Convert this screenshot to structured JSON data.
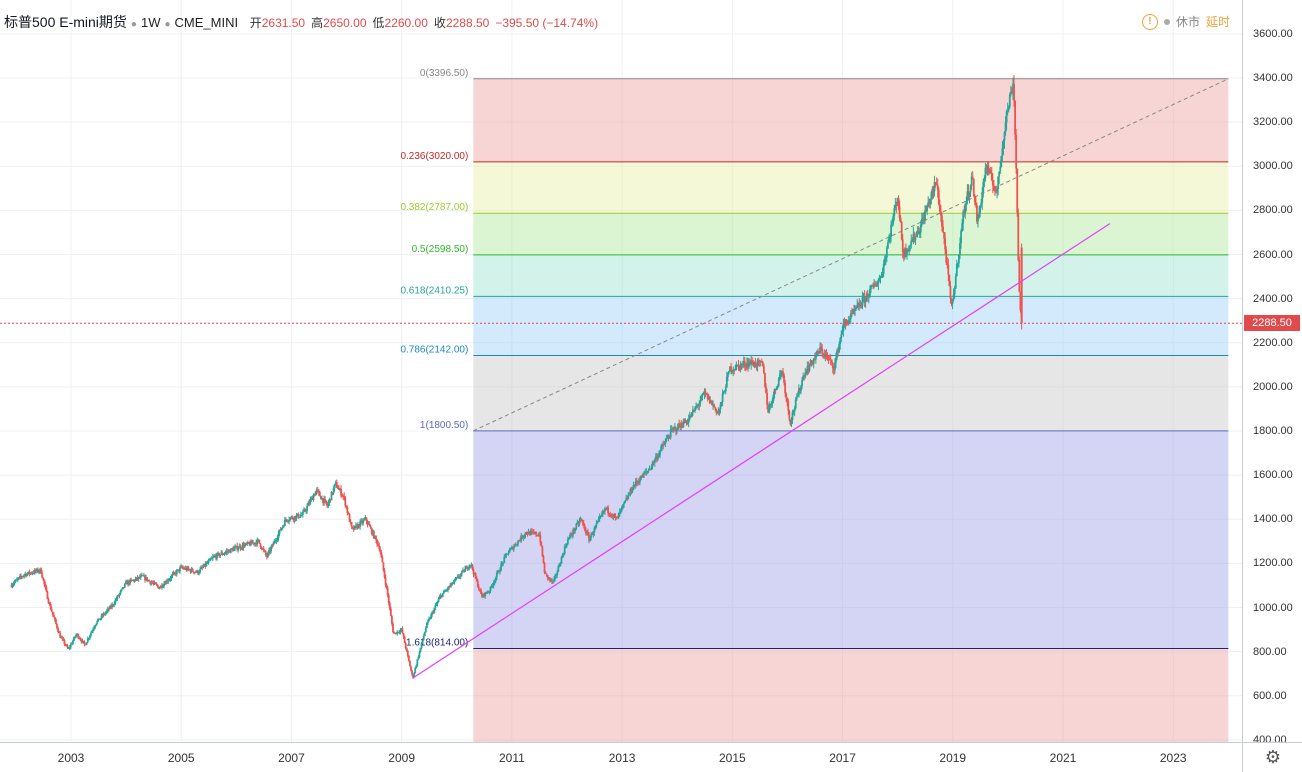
{
  "legend": {
    "symbol": "标普500 E-mini期货",
    "interval": "1W",
    "exchange": "CME_MINI",
    "open_label": "开",
    "open": "2631.50",
    "high_label": "高",
    "high": "2650.00",
    "low_label": "低",
    "low": "2260.00",
    "close_label": "收",
    "close": "2288.50",
    "change": "−395.50 (−14.74%)"
  },
  "status": {
    "warn": "!",
    "market": "休市",
    "delay": "延时"
  },
  "settings_icon": "gear-icon",
  "colors": {
    "up": "#26a69a",
    "down": "#ef5350",
    "trend": "#e040fb",
    "price": "#e04a4a"
  },
  "last_price_label": "2288.50",
  "chart_data": {
    "type": "candlestick",
    "title": "",
    "y_ticks": [
      "3600.00",
      "3400.00",
      "3200.00",
      "3000.00",
      "2800.00",
      "2600.00",
      "2400.00",
      "2200.00",
      "2000.00",
      "1800.00",
      "1600.00",
      "1400.00",
      "1200.00",
      "1000.00",
      "800.00",
      "600.00",
      "400.00"
    ],
    "x_ticks": [
      "2003",
      "2005",
      "2007",
      "2009",
      "2011",
      "2013",
      "2015",
      "2017",
      "2019",
      "2021",
      "2023"
    ],
    "ylim": [
      400,
      3650
    ],
    "xlim": [
      2001.75,
      2024.3
    ],
    "grid": true,
    "last_price": 2288.5,
    "price_path": [
      [
        2001.9,
        1100
      ],
      [
        2002.15,
        1150
      ],
      [
        2002.45,
        1170
      ],
      [
        2002.6,
        1020
      ],
      [
        2002.8,
        870
      ],
      [
        2002.95,
        810
      ],
      [
        2003.1,
        880
      ],
      [
        2003.25,
        830
      ],
      [
        2003.45,
        930
      ],
      [
        2003.75,
        1010
      ],
      [
        2004.0,
        1110
      ],
      [
        2004.3,
        1140
      ],
      [
        2004.6,
        1090
      ],
      [
        2005.0,
        1180
      ],
      [
        2005.3,
        1160
      ],
      [
        2005.6,
        1230
      ],
      [
        2006.0,
        1270
      ],
      [
        2006.4,
        1300
      ],
      [
        2006.55,
        1230
      ],
      [
        2006.9,
        1400
      ],
      [
        2007.2,
        1420
      ],
      [
        2007.45,
        1530
      ],
      [
        2007.65,
        1460
      ],
      [
        2007.8,
        1560
      ],
      [
        2007.95,
        1500
      ],
      [
        2008.1,
        1350
      ],
      [
        2008.35,
        1400
      ],
      [
        2008.6,
        1270
      ],
      [
        2008.75,
        1050
      ],
      [
        2008.85,
        880
      ],
      [
        2009.0,
        900
      ],
      [
        2009.2,
        680
      ],
      [
        2009.45,
        920
      ],
      [
        2009.7,
        1050
      ],
      [
        2010.0,
        1130
      ],
      [
        2010.25,
        1200
      ],
      [
        2010.45,
        1050
      ],
      [
        2010.6,
        1080
      ],
      [
        2010.9,
        1240
      ],
      [
        2011.25,
        1340
      ],
      [
        2011.5,
        1330
      ],
      [
        2011.6,
        1150
      ],
      [
        2011.75,
        1110
      ],
      [
        2012.0,
        1300
      ],
      [
        2012.25,
        1400
      ],
      [
        2012.4,
        1310
      ],
      [
        2012.7,
        1450
      ],
      [
        2012.9,
        1400
      ],
      [
        2013.2,
        1550
      ],
      [
        2013.5,
        1630
      ],
      [
        2013.9,
        1800
      ],
      [
        2014.2,
        1850
      ],
      [
        2014.5,
        1970
      ],
      [
        2014.75,
        1880
      ],
      [
        2014.95,
        2080
      ],
      [
        2015.3,
        2110
      ],
      [
        2015.55,
        2100
      ],
      [
        2015.65,
        1890
      ],
      [
        2015.9,
        2080
      ],
      [
        2016.05,
        1840
      ],
      [
        2016.3,
        2060
      ],
      [
        2016.6,
        2170
      ],
      [
        2016.85,
        2090
      ],
      [
        2017.0,
        2270
      ],
      [
        2017.4,
        2400
      ],
      [
        2017.7,
        2500
      ],
      [
        2018.0,
        2870
      ],
      [
        2018.1,
        2600
      ],
      [
        2018.4,
        2720
      ],
      [
        2018.7,
        2930
      ],
      [
        2018.85,
        2650
      ],
      [
        2018.98,
        2350
      ],
      [
        2019.2,
        2800
      ],
      [
        2019.35,
        2950
      ],
      [
        2019.45,
        2740
      ],
      [
        2019.6,
        3000
      ],
      [
        2019.8,
        2880
      ],
      [
        2019.95,
        3200
      ],
      [
        2020.1,
        3390
      ],
      [
        2020.15,
        3000
      ],
      [
        2020.2,
        2450
      ],
      [
        2020.25,
        2288.5
      ]
    ],
    "fibonacci": {
      "start": [
        2010.3,
        1800.5
      ],
      "end": [
        2024.0,
        3396.5
      ],
      "levels": [
        {
          "label": "0(3396.50)",
          "value": 3396.5,
          "line": "#888888",
          "fill": "rgba(239,154,154,0.42)"
        },
        {
          "label": "0.236(3020.00)",
          "value": 3020.0,
          "line": "#c62828",
          "fill": "rgba(230,238,156,0.40)"
        },
        {
          "label": "0.382(2787.00)",
          "value": 2787.0,
          "line": "#9ccc2b",
          "fill": "rgba(165,230,145,0.40)"
        },
        {
          "label": "0.5(2598.50)",
          "value": 2598.5,
          "line": "#2eb82e",
          "fill": "rgba(128,222,196,0.35)"
        },
        {
          "label": "0.618(2410.25)",
          "value": 2410.25,
          "line": "#26a69a",
          "fill": "rgba(144,202,249,0.40)"
        },
        {
          "label": "0.786(2142.00)",
          "value": 2142.0,
          "line": "#1e88c5",
          "fill": "rgba(195,195,195,0.42)"
        },
        {
          "label": "1(1800.50)",
          "value": 1800.5,
          "line": "#5c6bc0",
          "fill": "rgba(159,159,230,0.45)"
        },
        {
          "label": "1.618(814.00)",
          "value": 814.0,
          "line": "#1a237e",
          "fill": "rgba(239,154,154,0.42)"
        }
      ]
    },
    "trendline": {
      "from": [
        2009.2,
        680
      ],
      "to": [
        2021.85,
        2740
      ]
    }
  }
}
